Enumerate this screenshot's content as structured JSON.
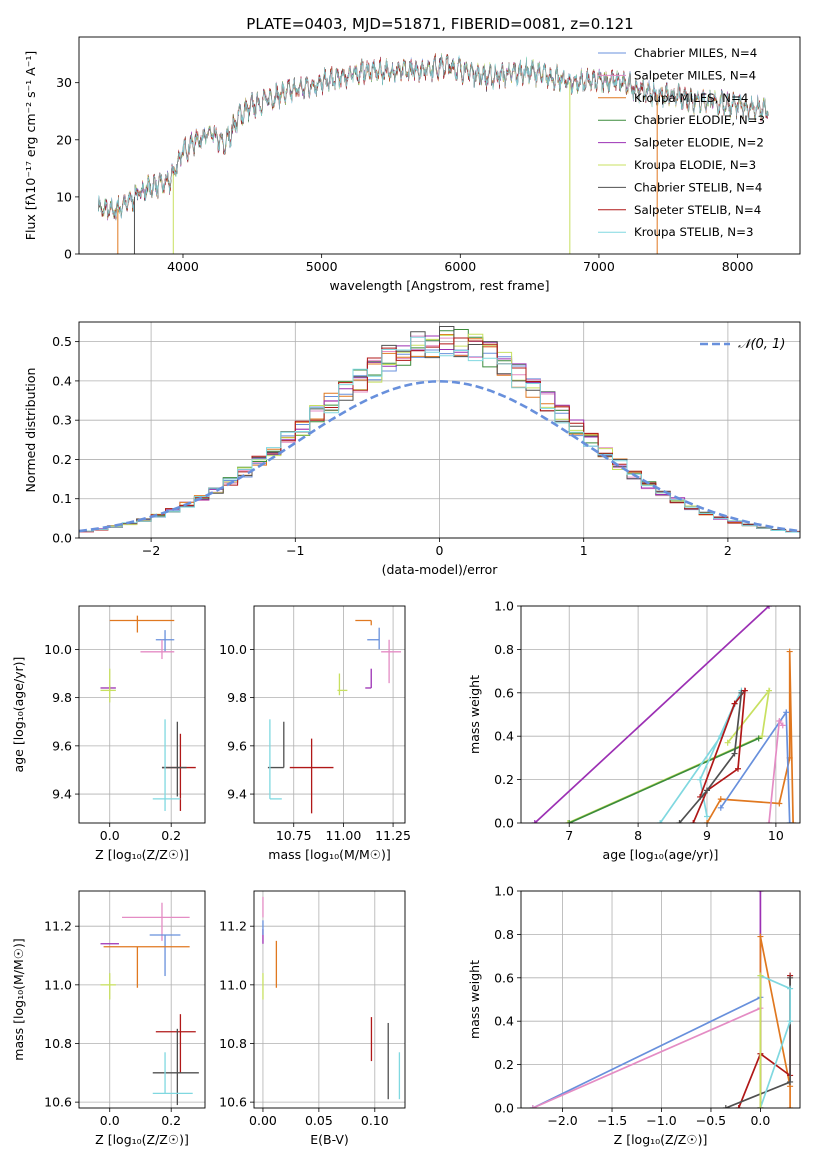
{
  "figure_title": "PLATE=0403, MJD=51871, FIBERID=0081, z=0.121",
  "chart_data": [
    {
      "id": "spectrum",
      "type": "line",
      "title": "PLATE=0403, MJD=51871, FIBERID=0081, z=0.121",
      "xlabel": "wavelength [Angstrom, rest frame]",
      "ylabel": "Flux [fλ10⁻¹⁷ erg cm⁻² s⁻¹ A⁻¹]",
      "xlim": [
        3250,
        8450
      ],
      "ylim": [
        0,
        38
      ],
      "xticks": [
        4000,
        5000,
        6000,
        7000,
        8000
      ],
      "yticks": [
        0,
        10,
        20,
        30
      ],
      "grid": false,
      "legend_position": "upper right",
      "continuum": {
        "x": [
          3390,
          3500,
          3600,
          3700,
          3800,
          3900,
          4000,
          4100,
          4200,
          4300,
          4400,
          4500,
          4700,
          5000,
          5300,
          5600,
          5900,
          6200,
          6500,
          6800,
          7100,
          7400,
          7700,
          8000,
          8220
        ],
        "y": [
          8,
          7.5,
          9,
          11,
          12,
          12.5,
          18,
          20,
          21,
          19,
          24,
          26,
          28,
          30,
          32,
          32,
          33,
          31,
          32,
          30,
          30.5,
          28,
          27,
          26,
          25
        ]
      },
      "series": [
        {
          "name": "Chabrier MILES, N_SSP=4",
          "color": "#6890dc"
        },
        {
          "name": "Salpeter MILES, N_SSP=4",
          "color": "#e48cc4"
        },
        {
          "name": "Kroupa MILES, N_SSP=4",
          "color": "#e07820"
        },
        {
          "name": "Chabrier ELODIE, N_SSP=3",
          "color": "#3c8c3c"
        },
        {
          "name": "Salpeter ELODIE, N_SSP=2",
          "color": "#9c30b4"
        },
        {
          "name": "Kroupa ELODIE, N_SSP=3",
          "color": "#c8e060"
        },
        {
          "name": "Chabrier STELIB, N_SSP=4",
          "color": "#505050"
        },
        {
          "name": "Salpeter STELIB, N_SSP=4",
          "color": "#b01818"
        },
        {
          "name": "Kroupa STELIB, N_SSP=3",
          "color": "#80d8e0"
        }
      ]
    },
    {
      "id": "residuals",
      "type": "histogram",
      "xlabel": "(data-model)/error",
      "ylabel": "Normed distribution",
      "xlim": [
        -2.5,
        2.5
      ],
      "ylim": [
        0,
        0.55
      ],
      "xticks": [
        -2,
        -1,
        0,
        1,
        2
      ],
      "yticks": [
        0.0,
        0.1,
        0.2,
        0.3,
        0.4,
        0.5
      ],
      "grid": true,
      "legend_position": "upper right",
      "legend": "𝒩(0, 1)",
      "reference_curve": {
        "name": "N(0,1)",
        "color": "#6890dc",
        "style": "dashed"
      },
      "bin_width": 0.1,
      "bins_start": -2.6,
      "envelope": [
        0.014,
        0.017,
        0.022,
        0.029,
        0.037,
        0.046,
        0.057,
        0.07,
        0.085,
        0.102,
        0.121,
        0.143,
        0.167,
        0.193,
        0.221,
        0.251,
        0.282,
        0.313,
        0.344,
        0.374,
        0.404,
        0.431,
        0.455,
        0.475,
        0.489,
        0.497,
        0.499,
        0.494,
        0.482,
        0.464,
        0.441,
        0.413,
        0.383,
        0.351,
        0.317,
        0.283,
        0.25,
        0.218,
        0.189,
        0.161,
        0.136,
        0.114,
        0.095,
        0.078,
        0.063,
        0.051,
        0.041,
        0.033,
        0.026,
        0.02,
        0.016,
        0.012
      ]
    },
    {
      "id": "age-vs-Z",
      "type": "errorbar",
      "xlabel": "Z [log₁₀(Z/Z☉)]",
      "ylabel": "age  [log₁₀(age/yr)]",
      "xlim": [
        -0.1,
        0.31
      ],
      "ylim": [
        9.28,
        10.18
      ],
      "xticks": [
        0.0,
        0.2
      ],
      "yticks": [
        9.4,
        9.6,
        9.8,
        10.0
      ],
      "grid": true,
      "points": [
        {
          "x": 0.09,
          "y": 10.12,
          "xerr": [
            0.09,
            0.12
          ],
          "yerr": [
            0.05,
            0.02
          ],
          "color": "#e07820"
        },
        {
          "x": 0.18,
          "y": 10.04,
          "xerr": [
            0.03,
            0.03
          ],
          "yerr": [
            0.05,
            0.04
          ],
          "color": "#6890dc"
        },
        {
          "x": 0.17,
          "y": 9.99,
          "xerr": [
            0.07,
            0.04
          ],
          "yerr": [
            0.03,
            0.05
          ],
          "color": "#e48cc4"
        },
        {
          "x": 0.0,
          "y": 9.84,
          "xerr": [
            0.03,
            0.02
          ],
          "yerr": [
            0.01,
            0.01
          ],
          "color": "#9c30b4"
        },
        {
          "x": 0.0,
          "y": 9.83,
          "xerr": [
            0.03,
            0.02
          ],
          "yerr": [
            0.05,
            0.09
          ],
          "color": "#c8e060"
        },
        {
          "x": 0.23,
          "y": 9.51,
          "xerr": [
            0.06,
            0.05
          ],
          "yerr": [
            0.18,
            0.14
          ],
          "color": "#b01818"
        },
        {
          "x": 0.22,
          "y": 9.51,
          "xerr": [
            0.05,
            0.03
          ],
          "yerr": [
            0.12,
            0.19
          ],
          "color": "#505050"
        },
        {
          "x": 0.18,
          "y": 9.38,
          "xerr": [
            0.04,
            0.05
          ],
          "yerr": [
            0.05,
            0.33
          ],
          "color": "#80d8e0"
        }
      ]
    },
    {
      "id": "age-vs-mass",
      "type": "errorbar",
      "xlabel": "mass [log₁₀(M/M☉)]",
      "ylabel": "",
      "xlim": [
        10.55,
        11.31
      ],
      "ylim": [
        9.28,
        10.18
      ],
      "xticks": [
        10.75,
        11.0,
        11.25
      ],
      "yticks": [
        9.4,
        9.6,
        9.8,
        10.0
      ],
      "grid": true,
      "points": [
        {
          "x": 11.14,
          "y": 10.12,
          "xerr": [
            0.08,
            0.0
          ],
          "yerr": [
            0.02,
            0.0
          ],
          "color": "#e07820"
        },
        {
          "x": 11.18,
          "y": 10.04,
          "xerr": [
            0.06,
            0.0
          ],
          "yerr": [
            0.04,
            0.05
          ],
          "color": "#6890dc"
        },
        {
          "x": 11.23,
          "y": 9.99,
          "xerr": [
            0.04,
            0.06
          ],
          "yerr": [
            0.13,
            0.05
          ],
          "color": "#e48cc4"
        },
        {
          "x": 11.14,
          "y": 9.84,
          "xerr": [
            0.03,
            0.0
          ],
          "yerr": [
            0.0,
            0.08
          ],
          "color": "#9c30b4"
        },
        {
          "x": 10.98,
          "y": 9.83,
          "xerr": [
            0.01,
            0.04
          ],
          "yerr": [
            0.02,
            0.07
          ],
          "color": "#c8e060"
        },
        {
          "x": 10.84,
          "y": 9.51,
          "xerr": [
            0.11,
            0.11
          ],
          "yerr": [
            0.19,
            0.12
          ],
          "color": "#b01818"
        },
        {
          "x": 10.7,
          "y": 9.51,
          "xerr": [
            0.08,
            0.0
          ],
          "yerr": [
            0.0,
            0.19
          ],
          "color": "#505050"
        },
        {
          "x": 10.63,
          "y": 9.38,
          "xerr": [
            0.0,
            0.06
          ],
          "yerr": [
            0.0,
            0.33
          ],
          "color": "#80d8e0"
        }
      ]
    },
    {
      "id": "weight-vs-age",
      "type": "line",
      "xlabel": "age  [log₁₀(age/yr)]",
      "ylabel": "mass weight",
      "xlim": [
        6.3,
        10.35
      ],
      "ylim": [
        0,
        1
      ],
      "xticks": [
        7,
        8,
        9,
        10
      ],
      "yticks": [
        0.0,
        0.2,
        0.4,
        0.6,
        0.8,
        1.0
      ],
      "grid": true,
      "series": [
        {
          "color": "#9c30b4",
          "x": [
            6.5,
            9.9
          ],
          "y": [
            0.0,
            1.0
          ]
        },
        {
          "color": "#c8e060",
          "x": [
            6.98,
            9.8,
            9.9,
            9.3
          ],
          "y": [
            0.0,
            0.4,
            0.61,
            0.37
          ]
        },
        {
          "color": "#3c8c3c",
          "x": [
            7.0,
            9.75
          ],
          "y": [
            0.0,
            0.39
          ]
        },
        {
          "color": "#80d8e0",
          "x": [
            8.32,
            9.2,
            9.5,
            9.4,
            8.9,
            9.0
          ],
          "y": [
            0.0,
            0.4,
            0.61,
            0.55,
            0.2,
            0.03
          ]
        },
        {
          "color": "#b01818",
          "x": [
            8.8,
            9.0,
            9.45,
            9.55,
            9.4,
            8.9
          ],
          "y": [
            0.0,
            0.15,
            0.25,
            0.61,
            0.55,
            0.12
          ]
        },
        {
          "color": "#505050",
          "x": [
            8.6,
            9.0,
            9.4,
            9.5
          ],
          "y": [
            0.0,
            0.15,
            0.32,
            0.6
          ]
        },
        {
          "color": "#e07820",
          "x": [
            9.0,
            9.2,
            10.05,
            10.2,
            10.2,
            10.25
          ],
          "y": [
            0.0,
            0.11,
            0.09,
            0.3,
            0.79,
            0.0
          ]
        },
        {
          "color": "#6890dc",
          "x": [
            9.2,
            10.15,
            10.2
          ],
          "y": [
            0.07,
            0.51,
            0.0
          ]
        },
        {
          "color": "#e48cc4",
          "x": [
            9.9,
            10.05,
            10.1
          ],
          "y": [
            0.0,
            0.47,
            0.45
          ]
        }
      ]
    },
    {
      "id": "mass-vs-Z",
      "type": "errorbar",
      "xlabel": "Z [log₁₀(Z/Z☉)]",
      "ylabel": "mass [log₁₀(M/M☉)]",
      "xlim": [
        -0.1,
        0.31
      ],
      "ylim": [
        10.58,
        11.32
      ],
      "xticks": [
        0.0,
        0.2
      ],
      "yticks": [
        10.6,
        10.8,
        11.0,
        11.2
      ],
      "grid": true,
      "points": [
        {
          "x": 0.17,
          "y": 11.23,
          "xerr": [
            0.13,
            0.09
          ],
          "yerr": [
            0.08,
            0.05
          ],
          "color": "#e48cc4"
        },
        {
          "x": 0.18,
          "y": 11.17,
          "xerr": [
            0.05,
            0.05
          ],
          "yerr": [
            0.14,
            0.0
          ],
          "color": "#6890dc"
        },
        {
          "x": 0.0,
          "y": 11.14,
          "xerr": [
            0.03,
            0.03
          ],
          "yerr": [
            0.0,
            0.0
          ],
          "color": "#9c30b4"
        },
        {
          "x": 0.09,
          "y": 11.13,
          "xerr": [
            0.11,
            0.17
          ],
          "yerr": [
            0.14,
            0.0
          ],
          "color": "#e07820"
        },
        {
          "x": 0.0,
          "y": 11.0,
          "xerr": [
            0.03,
            0.02
          ],
          "yerr": [
            0.05,
            0.04
          ],
          "color": "#c8e060"
        },
        {
          "x": 0.23,
          "y": 10.84,
          "xerr": [
            0.08,
            0.05
          ],
          "yerr": [
            0.14,
            0.06
          ],
          "color": "#b01818"
        },
        {
          "x": 0.22,
          "y": 10.7,
          "xerr": [
            0.08,
            0.07
          ],
          "yerr": [
            0.11,
            0.15
          ],
          "color": "#505050"
        },
        {
          "x": 0.18,
          "y": 10.63,
          "xerr": [
            0.04,
            0.09
          ],
          "yerr": [
            0.0,
            0.14
          ],
          "color": "#80d8e0"
        }
      ]
    },
    {
      "id": "mass-vs-ebv",
      "type": "errorbar",
      "xlabel": "E(B-V)",
      "ylabel": "",
      "xlim": [
        -0.008,
        0.127
      ],
      "ylim": [
        10.58,
        11.32
      ],
      "xticks": [
        0.0,
        0.05,
        0.1
      ],
      "yticks": [
        10.6,
        10.8,
        11.0,
        11.2
      ],
      "grid": true,
      "points": [
        {
          "x": 0.0,
          "y": 11.23,
          "xerr": [
            0.0,
            0.0
          ],
          "yerr": [
            0.0,
            0.07
          ],
          "color": "#e48cc4"
        },
        {
          "x": 0.0,
          "y": 11.14,
          "xerr": [
            0.0,
            0.0
          ],
          "yerr": [
            0.0,
            0.05
          ],
          "color": "#9c30b4"
        },
        {
          "x": 0.0,
          "y": 11.17,
          "xerr": [
            0.0,
            0.0
          ],
          "yerr": [
            0.0,
            0.05
          ],
          "color": "#6890dc"
        },
        {
          "x": 0.012,
          "y": 11.07,
          "xerr": [
            0.0,
            0.0
          ],
          "yerr": [
            0.08,
            0.08
          ],
          "color": "#e07820"
        },
        {
          "x": 0.0,
          "y": 11.0,
          "xerr": [
            0.0,
            0.0
          ],
          "yerr": [
            0.05,
            0.04
          ],
          "color": "#c8e060"
        },
        {
          "x": 0.097,
          "y": 10.81,
          "xerr": [
            0.0,
            0.0
          ],
          "yerr": [
            0.07,
            0.08
          ],
          "color": "#b01818"
        },
        {
          "x": 0.112,
          "y": 10.75,
          "xerr": [
            0.0,
            0.0
          ],
          "yerr": [
            0.14,
            0.12
          ],
          "color": "#505050"
        },
        {
          "x": 0.122,
          "y": 10.71,
          "xerr": [
            0.0,
            0.0
          ],
          "yerr": [
            0.1,
            0.06
          ],
          "color": "#80d8e0"
        }
      ]
    },
    {
      "id": "weight-vs-Z",
      "type": "line",
      "xlabel": "Z [log₁₀(Z/Z☉)]",
      "ylabel": "mass weight",
      "xlim": [
        -2.42,
        0.4
      ],
      "ylim": [
        0,
        1
      ],
      "xticks": [
        -2.0,
        -1.5,
        -1.0,
        -0.5,
        0.0
      ],
      "yticks": [
        0.0,
        0.2,
        0.4,
        0.6,
        0.8,
        1.0
      ],
      "grid": true,
      "series": [
        {
          "color": "#9c30b4",
          "x": [
            0.0,
            0.0
          ],
          "y": [
            1.0,
            0.0
          ]
        },
        {
          "color": "#6890dc",
          "x": [
            -2.3,
            0.0,
            0.0
          ],
          "y": [
            0.0,
            0.51,
            0.0
          ]
        },
        {
          "color": "#e48cc4",
          "x": [
            -2.3,
            0.0
          ],
          "y": [
            0.0,
            0.46
          ]
        },
        {
          "color": "#e07820",
          "x": [
            0.0,
            0.0,
            0.3,
            0.3
          ],
          "y": [
            0.0,
            0.79,
            0.1,
            0.0
          ]
        },
        {
          "color": "#b01818",
          "x": [
            -0.22,
            0.0,
            0.3,
            0.3
          ],
          "y": [
            0.0,
            0.25,
            0.15,
            0.61
          ]
        },
        {
          "color": "#505050",
          "x": [
            -0.35,
            0.3,
            0.3
          ],
          "y": [
            0.0,
            0.12,
            0.6
          ]
        },
        {
          "color": "#80d8e0",
          "x": [
            0.0,
            0.3,
            0.3,
            0.0
          ],
          "y": [
            0.0,
            0.4,
            0.55,
            0.61
          ]
        },
        {
          "color": "#c8e060",
          "x": [
            0.0,
            0.0
          ],
          "y": [
            0.0,
            0.61
          ]
        }
      ]
    }
  ]
}
